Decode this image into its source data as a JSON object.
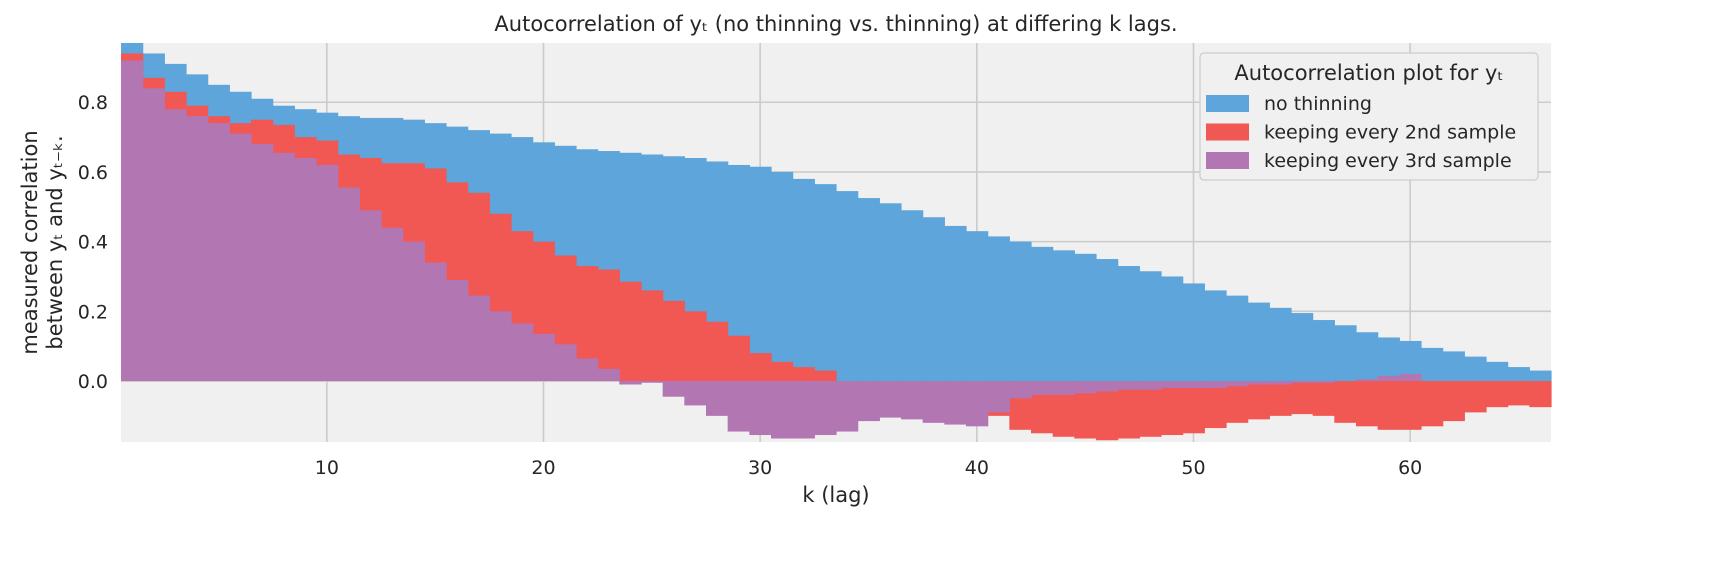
{
  "chart_data": {
    "type": "bar",
    "title": "Autocorrelation of yₜ (no thinning vs. thinning) at differing k lags.",
    "xlabel": "k (lag)",
    "ylabel_line1": "measured correlation",
    "ylabel_line2": "between yₜ and yₜ₋ₖ.",
    "xlim": [
      0.5,
      66.5
    ],
    "ylim": [
      -0.175,
      0.97
    ],
    "x_ticks": [
      10,
      20,
      30,
      40,
      50,
      60
    ],
    "y_ticks": [
      0.0,
      0.2,
      0.4,
      0.6,
      0.8
    ],
    "x_tick_labels": [
      "10",
      "20",
      "30",
      "40",
      "50",
      "60"
    ],
    "y_tick_labels": [
      "0.0",
      "0.2",
      "0.4",
      "0.6",
      "0.8"
    ],
    "grid": true,
    "legend_title": "Autocorrelation plot for yₜ",
    "legend_position": "top-right",
    "x": [
      1,
      2,
      3,
      4,
      5,
      6,
      7,
      8,
      9,
      10,
      11,
      12,
      13,
      14,
      15,
      16,
      17,
      18,
      19,
      20,
      21,
      22,
      23,
      24,
      25,
      26,
      27,
      28,
      29,
      30,
      31,
      32,
      33,
      34,
      35,
      36,
      37,
      38,
      39,
      40,
      41,
      42,
      43,
      44,
      45,
      46,
      47,
      48,
      49,
      50,
      51,
      52,
      53,
      54,
      55,
      56,
      57,
      58,
      59,
      60,
      61,
      62,
      63,
      64,
      65,
      66
    ],
    "series": [
      {
        "name": "no thinning",
        "color": "#5da5da",
        "values": [
          0.97,
          0.94,
          0.91,
          0.88,
          0.85,
          0.83,
          0.81,
          0.79,
          0.78,
          0.77,
          0.76,
          0.755,
          0.755,
          0.75,
          0.74,
          0.73,
          0.72,
          0.71,
          0.7,
          0.685,
          0.675,
          0.665,
          0.66,
          0.655,
          0.65,
          0.645,
          0.64,
          0.63,
          0.62,
          0.615,
          0.6,
          0.58,
          0.565,
          0.545,
          0.525,
          0.51,
          0.49,
          0.47,
          0.445,
          0.43,
          0.415,
          0.4,
          0.385,
          0.375,
          0.365,
          0.35,
          0.33,
          0.315,
          0.3,
          0.28,
          0.26,
          0.245,
          0.225,
          0.21,
          0.195,
          0.175,
          0.16,
          0.14,
          0.125,
          0.115,
          0.095,
          0.085,
          0.07,
          0.055,
          0.04,
          0.03
        ]
      },
      {
        "name": "keeping every 2nd sample",
        "color": "#f15854",
        "values": [
          0.94,
          0.87,
          0.83,
          0.79,
          0.76,
          0.74,
          0.75,
          0.735,
          0.7,
          0.69,
          0.65,
          0.64,
          0.625,
          0.625,
          0.61,
          0.57,
          0.54,
          0.48,
          0.43,
          0.4,
          0.36,
          0.33,
          0.32,
          0.285,
          0.26,
          0.23,
          0.2,
          0.17,
          0.13,
          0.08,
          0.055,
          0.04,
          0.03,
          0.0,
          0.0,
          0.0,
          0.0,
          0.0,
          0.0,
          0.0,
          -0.1,
          -0.14,
          -0.15,
          -0.16,
          -0.165,
          -0.17,
          -0.165,
          -0.16,
          -0.155,
          -0.15,
          -0.135,
          -0.12,
          -0.11,
          -0.1,
          -0.095,
          -0.1,
          -0.12,
          -0.13,
          -0.14,
          -0.14,
          -0.13,
          -0.115,
          -0.09,
          -0.075,
          -0.07,
          -0.075
        ]
      },
      {
        "name": "keeping every 3rd sample",
        "color": "#b276b2",
        "values": [
          0.92,
          0.84,
          0.78,
          0.76,
          0.74,
          0.71,
          0.68,
          0.655,
          0.64,
          0.62,
          0.555,
          0.49,
          0.44,
          0.4,
          0.34,
          0.29,
          0.245,
          0.2,
          0.165,
          0.135,
          0.105,
          0.065,
          0.035,
          -0.01,
          -0.005,
          -0.045,
          -0.07,
          -0.1,
          -0.145,
          -0.155,
          -0.165,
          -0.165,
          -0.155,
          -0.145,
          -0.115,
          -0.105,
          -0.11,
          -0.12,
          -0.125,
          -0.13,
          -0.09,
          -0.05,
          -0.04,
          -0.04,
          -0.035,
          -0.03,
          -0.025,
          -0.025,
          -0.02,
          -0.02,
          -0.02,
          -0.015,
          -0.01,
          -0.01,
          -0.005,
          -0.005,
          0.0,
          0.005,
          0.015,
          0.02,
          0.0,
          0.0,
          0.0,
          0.0,
          0.0,
          0.0
        ]
      }
    ]
  }
}
